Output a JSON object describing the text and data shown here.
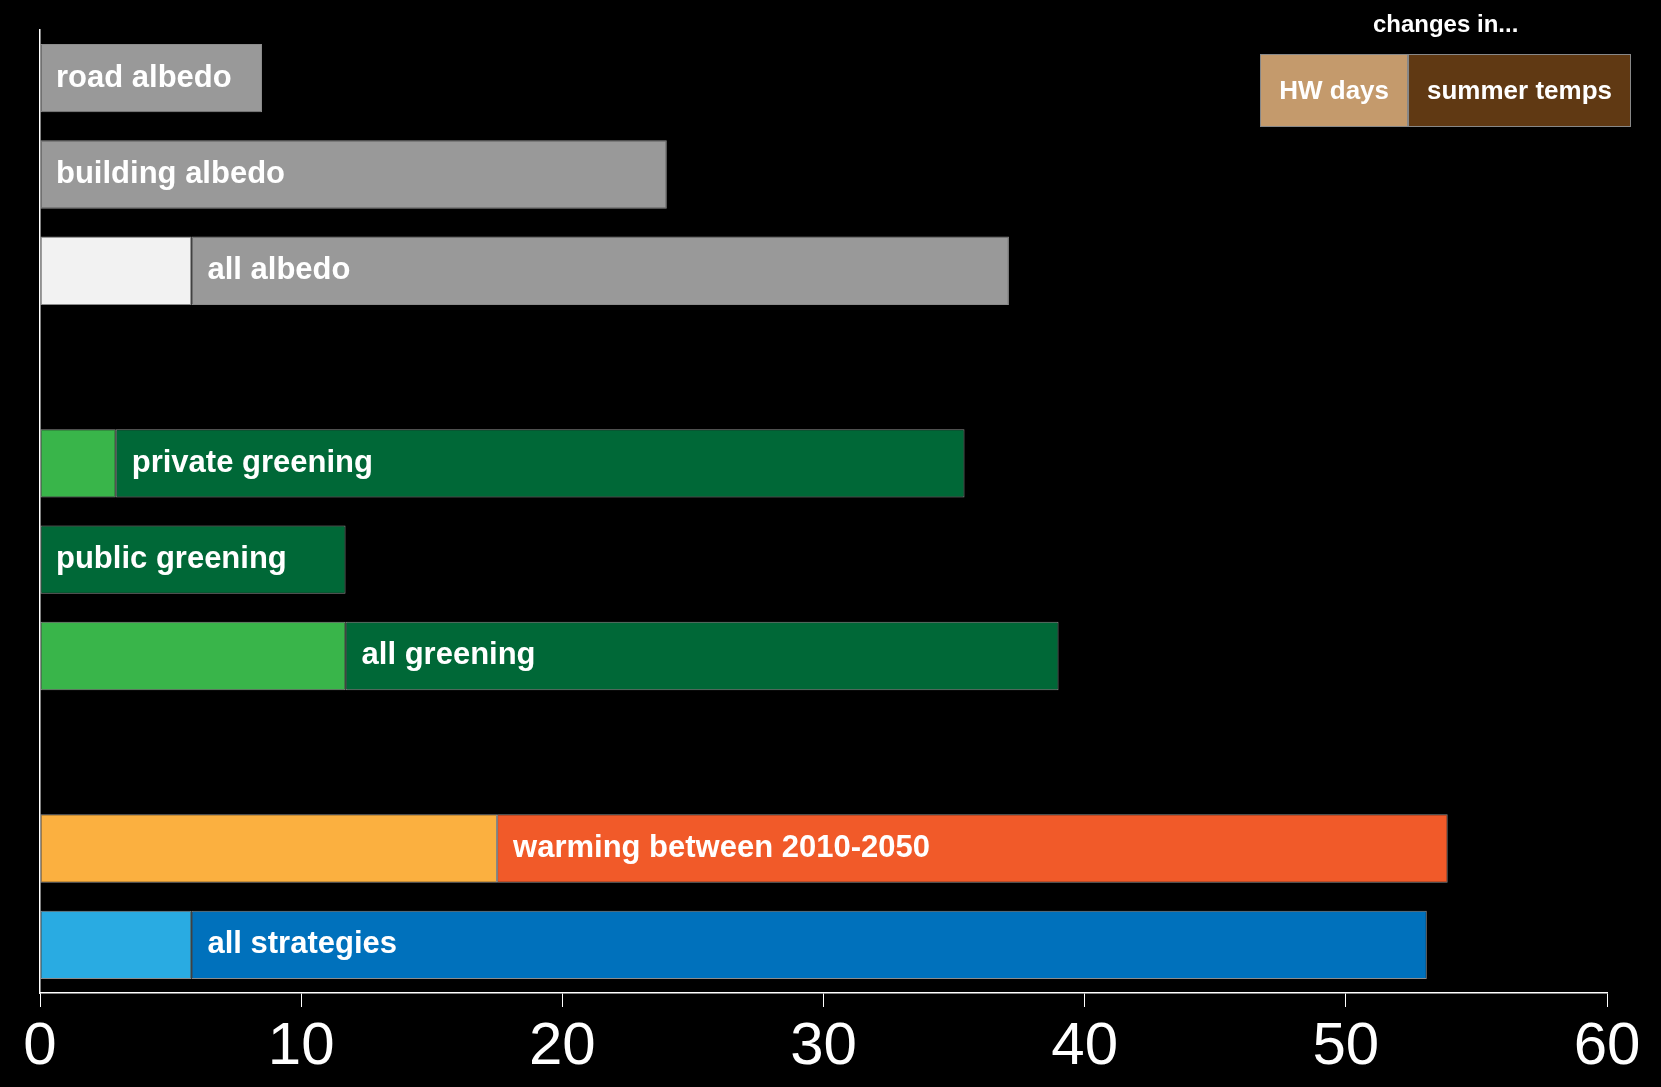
{
  "chart_data": {
    "type": "bar",
    "orientation": "horizontal",
    "stacked": true,
    "categories": [
      "road albedo",
      "building albedo",
      "all albedo",
      null,
      "private greening",
      "public greening",
      "all greening",
      null,
      "warming between 2010-2050",
      "all strategies"
    ],
    "series": [
      {
        "name": "HW days",
        "color": "#c49a6c",
        "colors": [
          null,
          null,
          "#f2f2f2",
          null,
          "#39b54a",
          null,
          "#39b54a",
          null,
          "#fbb040",
          "#29abe2"
        ],
        "values": [
          null,
          null,
          5.8,
          null,
          2.9,
          null,
          11.7,
          null,
          17.5,
          5.8
        ]
      },
      {
        "name": "summer temps",
        "color": "#603913",
        "colors": [
          "#999999",
          "#999999",
          "#999999",
          null,
          "#006837",
          "#006837",
          "#006837",
          null,
          "#f15a29",
          "#0071bc"
        ],
        "values": [
          8.5,
          24,
          31.3,
          null,
          32.5,
          11.7,
          27.3,
          null,
          36.4,
          47.3
        ]
      }
    ],
    "xlim": [
      0,
      60
    ],
    "xticks": [
      0,
      10,
      20,
      30,
      40,
      50,
      60
    ],
    "legend": "top right",
    "legend_title": "changes in...",
    "tick_labels": "x"
  }
}
